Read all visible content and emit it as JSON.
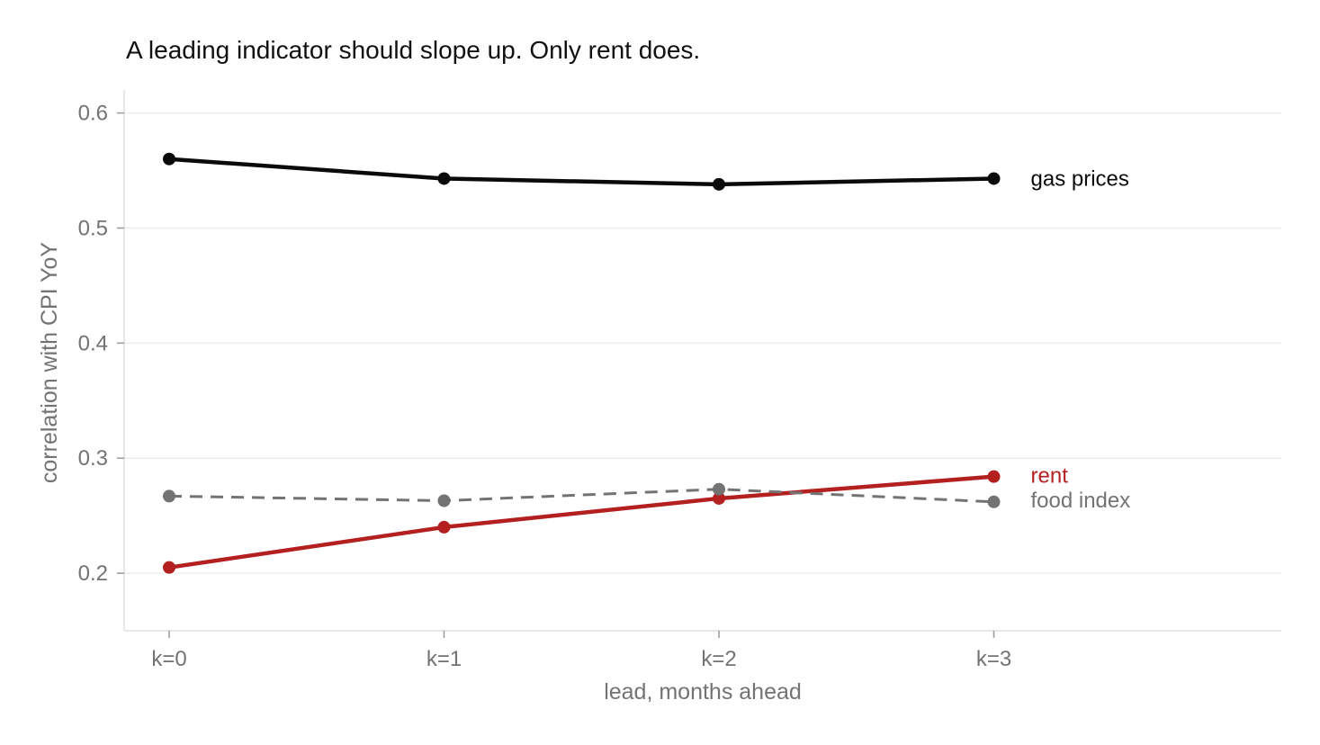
{
  "chart_data": {
    "type": "line",
    "title": "A leading indicator should slope up. Only rent does.",
    "xlabel": "lead, months ahead",
    "ylabel": "correlation with CPI YoY",
    "categories": [
      "k=0",
      "k=1",
      "k=2",
      "k=3"
    ],
    "ylim": [
      0.15,
      0.62
    ],
    "yticks": [
      0.2,
      0.3,
      0.4,
      0.5,
      0.6
    ],
    "ytick_labels": [
      "0.2",
      "0.3",
      "0.4",
      "0.5",
      "0.6"
    ],
    "grid": "horizontal",
    "legend": "direct labels at line ends",
    "series": [
      {
        "name": "gas prices",
        "values": [
          0.56,
          0.543,
          0.538,
          0.543
        ],
        "color": "#0a0a0a",
        "dash": "solid"
      },
      {
        "name": "rent",
        "values": [
          0.205,
          0.24,
          0.265,
          0.284
        ],
        "color": "#b41f1f",
        "dash": "solid"
      },
      {
        "name": "food index",
        "values": [
          0.267,
          0.263,
          0.273,
          0.262
        ],
        "color": "#737373",
        "dash": "dashed"
      }
    ]
  }
}
